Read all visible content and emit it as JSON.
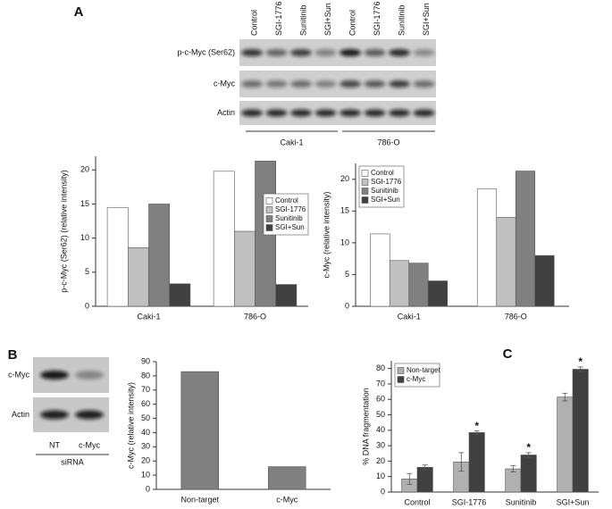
{
  "panel_labels": [
    "A",
    "B",
    "C"
  ],
  "blot_a": {
    "lanes": [
      "Control",
      "SGI-1776",
      "Sunitinib",
      "SGI+Sun",
      "Control",
      "SGI-1776",
      "Sunitinib",
      "SGI+Sun"
    ],
    "rows": [
      "p-c-Myc (Ser62)",
      "c-Myc",
      "Actin"
    ],
    "groups": [
      "Caki-1",
      "786-O"
    ]
  },
  "blot_b": {
    "rows": [
      "c-Myc",
      "Actin"
    ],
    "lanes": [
      "NT",
      "c-Myc"
    ],
    "group": "siRNA"
  },
  "chart_data": [
    {
      "type": "bar",
      "ylabel": "p-c-Myc (Ser62) (relative intensity)",
      "categories": [
        "Caki-1",
        "786-O"
      ],
      "series": [
        {
          "name": "Control",
          "color": "#ffffff",
          "values": [
            14.5,
            19.8
          ]
        },
        {
          "name": "SGI-1776",
          "color": "#c0c0c0",
          "values": [
            8.6,
            11
          ]
        },
        {
          "name": "Sunitinib",
          "color": "#808080",
          "values": [
            15,
            21.3
          ]
        },
        {
          "name": "SGI+Sun",
          "color": "#404040",
          "values": [
            3.3,
            3.2
          ]
        }
      ],
      "ylim": [
        0,
        22
      ],
      "yticks": [
        0,
        5,
        10,
        15,
        20
      ],
      "legend": "right"
    },
    {
      "type": "bar",
      "ylabel": "c-Myc (relative intensity)",
      "categories": [
        "Caki-1",
        "786-O"
      ],
      "series": [
        {
          "name": "Control",
          "color": "#ffffff",
          "values": [
            11.4,
            18.5
          ]
        },
        {
          "name": "SGI-1776",
          "color": "#c0c0c0",
          "values": [
            7.2,
            14
          ]
        },
        {
          "name": "Sunitinib",
          "color": "#808080",
          "values": [
            6.8,
            21.3
          ]
        },
        {
          "name": "SGI+Sun",
          "color": "#404040",
          "values": [
            4,
            8
          ]
        }
      ],
      "ylim": [
        0,
        22.5
      ],
      "yticks": [
        0,
        5,
        10,
        15,
        20
      ],
      "legend": "upper left"
    },
    {
      "type": "bar",
      "ylabel": "c-Myc (relative intensity)",
      "categories": [
        "Non-target",
        "c-Myc"
      ],
      "values": [
        83,
        16
      ],
      "color": "#808080",
      "ylim": [
        0,
        90
      ],
      "yticks": [
        0,
        10,
        20,
        30,
        40,
        50,
        60,
        70,
        80,
        90
      ]
    },
    {
      "type": "bar",
      "ylabel": "% DNA fragmentation",
      "categories": [
        "Control",
        "SGI-1776",
        "Sunitinib",
        "SGI+Sun"
      ],
      "series": [
        {
          "name": "Non-target",
          "color": "#b0b0b0",
          "values": [
            8.5,
            19.5,
            15,
            61.5
          ],
          "errors": [
            3.5,
            6,
            2,
            2.5
          ]
        },
        {
          "name": "c-Myc",
          "color": "#404040",
          "values": [
            16,
            38.5,
            24,
            79.5
          ],
          "errors": [
            1.5,
            1,
            1.5,
            1.5
          ],
          "significance": [
            null,
            "*",
            "*",
            "*"
          ]
        }
      ],
      "ylim": [
        0,
        85
      ],
      "yticks": [
        0,
        10,
        20,
        30,
        40,
        50,
        60,
        70,
        80
      ],
      "legend": "upper left"
    }
  ]
}
